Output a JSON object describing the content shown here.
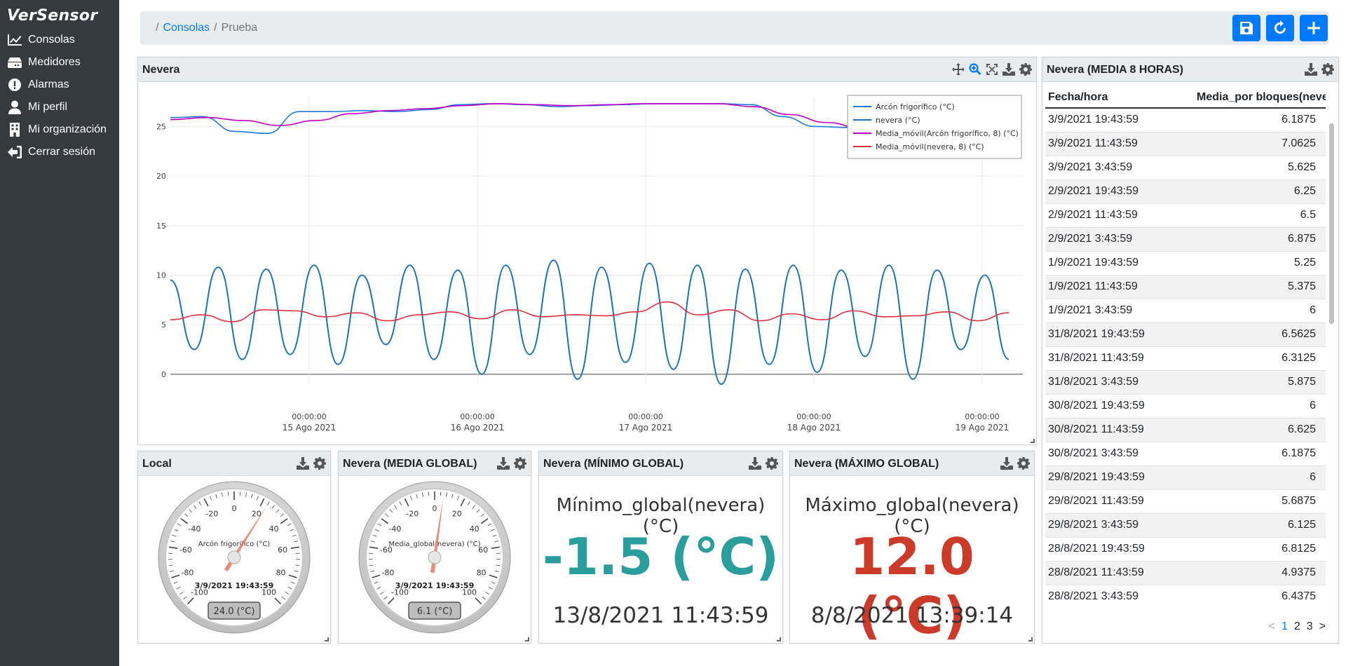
{
  "sidebar": {
    "brand": "VerSensor",
    "items": [
      {
        "label": "Consolas",
        "icon": "chart-line-icon"
      },
      {
        "label": "Medidores",
        "icon": "server-icon"
      },
      {
        "label": "Alarmas",
        "icon": "exclamation-circle-icon"
      },
      {
        "label": "Mi perfil",
        "icon": "user-icon"
      },
      {
        "label": "Mi organización",
        "icon": "building-icon"
      },
      {
        "label": "Cerrar sesión",
        "icon": "sign-out-icon"
      }
    ]
  },
  "breadcrumb": {
    "sep": "/",
    "link": "Consolas",
    "current": "Prueba"
  },
  "toolbar": {
    "save": "save-icon",
    "refresh": "refresh-icon",
    "add": "plus-icon"
  },
  "colors": {
    "accent": "#007bff",
    "min_value": "#2a9d9d",
    "max_value": "#cc3b29",
    "series_arcon": "#1f7ae0",
    "series_nevera": "#1b72b8",
    "series_media_arcon": "#c200c2",
    "series_media_nevera": "#e0303c"
  },
  "chart_panel": {
    "title": "Nevera"
  },
  "chart_data": {
    "type": "line",
    "ylim": [
      -1,
      28
    ],
    "yticks": [
      0,
      5,
      10,
      15,
      20,
      25
    ],
    "xtick_labels": [
      {
        "time": "00:00:00",
        "date": "15 Ago 2021"
      },
      {
        "time": "00:00:00",
        "date": "16 Ago 2021"
      },
      {
        "time": "00:00:00",
        "date": "17 Ago 2021"
      },
      {
        "time": "00:00:00",
        "date": "18 Ago 2021"
      },
      {
        "time": "00:00:00",
        "date": "19 Ago 2021"
      }
    ],
    "series": [
      {
        "name": "Arcón frigorífico (°C)",
        "values": [
          25.9,
          26.0,
          24.5,
          24.3,
          26.5,
          26.5,
          26.6,
          26.5,
          26.7,
          27.2,
          27.3,
          27.2,
          27.0,
          27.1,
          27.2,
          27.3,
          27.3,
          27.3,
          27.2,
          26.0,
          25.0,
          24.9,
          24.0,
          25.0,
          26.0,
          26.0,
          26.1
        ]
      },
      {
        "name": "nevera (°C)",
        "values": [
          9.5,
          2.5,
          10.8,
          1.5,
          10.6,
          2.0,
          11.0,
          1.0,
          10.0,
          3.0,
          11.0,
          1.5,
          10.5,
          0.0,
          11.0,
          2.0,
          11.5,
          -0.5,
          10.8,
          1.2,
          11.2,
          0.5,
          11.0,
          -1.0,
          10.6,
          1.0,
          11.0,
          0.2,
          10.5,
          1.8,
          11.0,
          -0.5,
          10.5,
          2.5,
          10.0,
          1.5
        ]
      },
      {
        "name": "Media_móvil(Arcón frigorífico, 8) (°C)",
        "values": [
          25.7,
          25.9,
          25.6,
          25.1,
          25.6,
          26.3,
          26.6,
          26.8,
          27.1,
          27.3,
          27.2,
          27.1,
          27.2,
          27.3,
          27.3,
          27.3,
          27.0,
          26.2,
          25.4,
          24.8,
          24.6,
          25.0,
          25.6,
          26.0
        ]
      },
      {
        "name": "Media_móvil(nevera, 8) (°C)",
        "values": [
          5.5,
          6.0,
          5.3,
          6.5,
          6.4,
          5.8,
          6.2,
          5.4,
          6.0,
          6.3,
          5.6,
          6.5,
          5.8,
          6.0,
          5.9,
          6.3,
          7.3,
          6.0,
          6.5,
          5.4,
          6.1,
          5.5,
          6.4,
          5.8,
          5.9,
          6.3,
          5.4,
          6.2
        ]
      }
    ]
  },
  "gauge_local": {
    "title": "Local",
    "sensor": "Arcón frigorífico (°C)",
    "date": "3/9/2021 19:43:59",
    "value": 24.0,
    "display": "24.0 (°C)",
    "ticks": [
      "-100",
      "-80",
      "-60",
      "-40",
      "-20",
      "0",
      "20",
      "40",
      "60",
      "80",
      "100"
    ]
  },
  "gauge_media": {
    "title": "Nevera (MEDIA GLOBAL)",
    "sensor": "Media_global(nevera) (°C)",
    "date": "3/9/2021 19:43:59",
    "value": 6.1,
    "display": "6.1 (°C)",
    "ticks": [
      "-100",
      "-80",
      "-60",
      "-40",
      "-20",
      "0",
      "20",
      "40",
      "60",
      "80",
      "100"
    ]
  },
  "stat_min": {
    "title": "Nevera (MÍNIMO GLOBAL)",
    "label": "Mínimo_global(nevera) (°C)",
    "value": "-1.5 (°C)",
    "date": "13/8/2021 11:43:59"
  },
  "stat_max": {
    "title": "Nevera (MÁXIMO GLOBAL)",
    "label": "Máximo_global(nevera) (°C)",
    "value": "12.0 (°C)",
    "date": "8/8/2021 13:39:14"
  },
  "table_panel": {
    "title": "Nevera (MEDIA 8 HORAS)",
    "columns": [
      "Fecha/hora",
      "Media_por bloques(never..."
    ],
    "rows": [
      [
        "3/9/2021 19:43:59",
        "6.1875"
      ],
      [
        "3/9/2021 11:43:59",
        "7.0625"
      ],
      [
        "3/9/2021 3:43:59",
        "5.625"
      ],
      [
        "2/9/2021 19:43:59",
        "6.25"
      ],
      [
        "2/9/2021 11:43:59",
        "6.5"
      ],
      [
        "2/9/2021 3:43:59",
        "6.875"
      ],
      [
        "1/9/2021 19:43:59",
        "5.25"
      ],
      [
        "1/9/2021 11:43:59",
        "5.375"
      ],
      [
        "1/9/2021 3:43:59",
        "6"
      ],
      [
        "31/8/2021 19:43:59",
        "6.5625"
      ],
      [
        "31/8/2021 11:43:59",
        "6.3125"
      ],
      [
        "31/8/2021 3:43:59",
        "5.875"
      ],
      [
        "30/8/2021 19:43:59",
        "6"
      ],
      [
        "30/8/2021 11:43:59",
        "6.625"
      ],
      [
        "30/8/2021 3:43:59",
        "6.1875"
      ],
      [
        "29/8/2021 19:43:59",
        "6"
      ],
      [
        "29/8/2021 11:43:59",
        "5.6875"
      ],
      [
        "29/8/2021 3:43:59",
        "6.125"
      ],
      [
        "28/8/2021 19:43:59",
        "6.8125"
      ],
      [
        "28/8/2021 11:43:59",
        "4.9375"
      ],
      [
        "28/8/2021 3:43:59",
        "6.4375"
      ]
    ],
    "pager": {
      "prev": "<",
      "pages": [
        "1",
        "2",
        "3"
      ],
      "next": ">",
      "current": "1"
    }
  }
}
